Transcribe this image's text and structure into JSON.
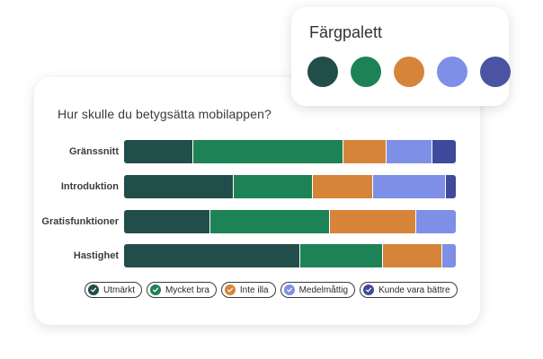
{
  "survey": {
    "question": "Hur skulle du betygsätta mobilappen?"
  },
  "chart_data": {
    "type": "bar",
    "orientation": "horizontal",
    "stacked": true,
    "percent_stacked": true,
    "categories": [
      "Gränssnitt",
      "Introduktion",
      "Gratisfunktioner",
      "Hastighet"
    ],
    "series": [
      {
        "name": "Utmärkt",
        "color": "#214e4a",
        "values": [
          21,
          33,
          26,
          53
        ]
      },
      {
        "name": "Mycket bra",
        "color": "#1d8356",
        "values": [
          45,
          24,
          36,
          25
        ]
      },
      {
        "name": "Inte illa",
        "color": "#d6843a",
        "values": [
          13,
          18,
          26,
          18
        ]
      },
      {
        "name": "Medelmåttig",
        "color": "#7d8fe6",
        "values": [
          14,
          22,
          12,
          4
        ]
      },
      {
        "name": "Kunde vara bättre",
        "color": "#3f4a9c",
        "values": [
          7,
          3,
          0,
          0
        ]
      }
    ],
    "legend_position": "bottom",
    "grid": false
  },
  "palette": {
    "title": "Färgpalett",
    "colors": [
      "#214e4a",
      "#1d8356",
      "#d6843a",
      "#7d8fe6",
      "#4a54a2"
    ]
  }
}
